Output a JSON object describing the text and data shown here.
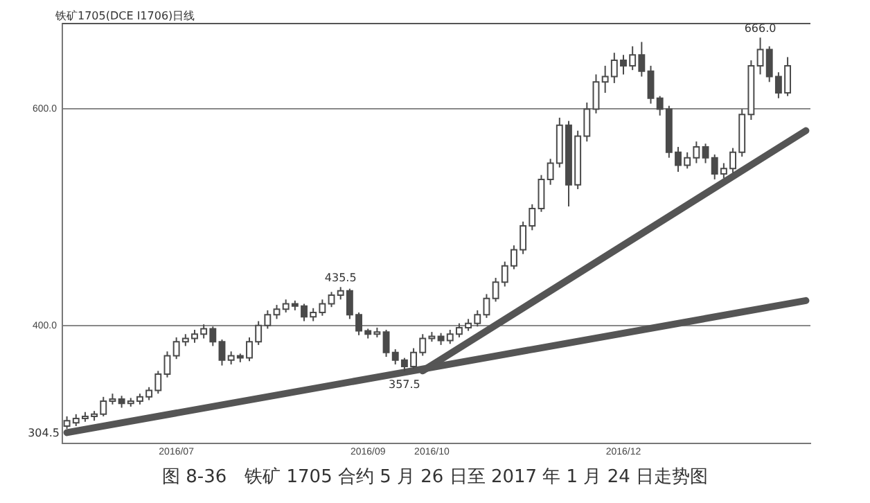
{
  "chart_data": {
    "type": "candlestick",
    "title": "铁矿1705(DCE I1706)日线",
    "annotations": [
      {
        "text": "435.5",
        "y": 435.5
      },
      {
        "text": "357.5",
        "y": 357.5
      },
      {
        "text": "666.0",
        "y": 666.0
      },
      "304.5",
      "图 8-36　铁矿 1705 合约 5 月 26 日至 2017 年 1 月 24 日走势图"
    ],
    "categories": [
      null,
      null,
      null,
      null,
      null,
      null,
      null,
      null,
      null,
      null,
      null,
      null,
      "2016/07",
      null,
      null,
      null,
      null,
      null,
      null,
      null,
      null,
      null,
      null,
      null,
      null,
      null,
      null,
      null,
      null,
      null,
      null,
      null,
      null,
      "2016/09",
      null,
      null,
      null,
      null,
      null,
      null,
      "2016/10",
      null,
      null,
      null,
      null,
      null,
      null,
      null,
      null,
      null,
      null,
      null,
      null,
      null,
      null,
      null,
      null,
      null,
      null,
      null,
      null,
      "2016/12",
      null,
      null,
      null,
      null,
      null,
      null,
      null,
      null,
      null,
      null,
      null,
      null,
      null,
      null,
      null,
      null,
      null,
      null,
      null,
      null
    ],
    "color": "#4a4a4a",
    "colors": [
      "#ffffff",
      "#ffffff",
      "#ffffff",
      "#ffffff",
      "#ffffff",
      "#ffffff",
      "#4a4a4a",
      "#ffffff",
      "#ffffff",
      "#ffffff",
      "#ffffff",
      "#ffffff",
      "#ffffff",
      "#ffffff",
      "#ffffff",
      "#ffffff",
      "#4a4a4a",
      "#4a4a4a",
      "#ffffff",
      "#4a4a4a",
      "#ffffff",
      "#ffffff",
      "#ffffff",
      "#ffffff",
      "#ffffff",
      "#4a4a4a",
      "#4a4a4a",
      "#ffffff",
      "#ffffff",
      "#ffffff",
      "#ffffff",
      "#4a4a4a",
      "#4a4a4a",
      "#4a4a4a",
      "#ffffff",
      "#4a4a4a",
      "#4a4a4a",
      "#4a4a4a",
      "#ffffff",
      "#ffffff",
      "#ffffff",
      "#4a4a4a",
      "#ffffff",
      "#ffffff",
      "#ffffff",
      "#ffffff",
      "#ffffff",
      "#ffffff",
      "#ffffff",
      "#ffffff",
      "#ffffff",
      "#ffffff",
      "#ffffff",
      "#ffffff",
      "#ffffff",
      "#4a4a4a",
      "#ffffff",
      "#ffffff",
      "#ffffff",
      "#ffffff",
      "#ffffff",
      "#4a4a4a",
      "#ffffff",
      "#4a4a4a",
      "#4a4a4a",
      "#4a4a4a",
      "#4a4a4a",
      "#4a4a4a",
      "#ffffff",
      "#ffffff",
      "#4a4a4a",
      "#4a4a4a",
      "#ffffff",
      "#ffffff",
      "#ffffff",
      "#ffffff",
      "#ffffff",
      "#4a4a4a",
      "#4a4a4a",
      "#ffffff",
      null,
      null
    ],
    "ohlc": [
      [
        307,
        316,
        304.5,
        312
      ],
      [
        310,
        318,
        307,
        314
      ],
      [
        314,
        320,
        311,
        316
      ],
      [
        316,
        321,
        312,
        318
      ],
      [
        318,
        334,
        316,
        330
      ],
      [
        330,
        337,
        327,
        332
      ],
      [
        332,
        335,
        324,
        328
      ],
      [
        328,
        333,
        325,
        330
      ],
      [
        330,
        337,
        327,
        334
      ],
      [
        334,
        343,
        331,
        340
      ],
      [
        340,
        358,
        337,
        355
      ],
      [
        355,
        376,
        352,
        372
      ],
      [
        372,
        389,
        369,
        385
      ],
      [
        385,
        392,
        381,
        388
      ],
      [
        388,
        396,
        384,
        392
      ],
      [
        392,
        401,
        388,
        397
      ],
      [
        397,
        399,
        381,
        385
      ],
      [
        385,
        387,
        363,
        368
      ],
      [
        368,
        376,
        364,
        372
      ],
      [
        372,
        374,
        366,
        370
      ],
      [
        370,
        389,
        367,
        385
      ],
      [
        385,
        404,
        382,
        400
      ],
      [
        400,
        414,
        397,
        410
      ],
      [
        410,
        419,
        406,
        415
      ],
      [
        415,
        424,
        412,
        420
      ],
      [
        420,
        423,
        414,
        418
      ],
      [
        418,
        420,
        404,
        408
      ],
      [
        408,
        416,
        404,
        412
      ],
      [
        412,
        424,
        409,
        420
      ],
      [
        420,
        431,
        417,
        428
      ],
      [
        428,
        435.5,
        424,
        432
      ],
      [
        432,
        434,
        406,
        410
      ],
      [
        410,
        412,
        391,
        395
      ],
      [
        395,
        397,
        388,
        392
      ],
      [
        392,
        398,
        389,
        394
      ],
      [
        394,
        396,
        371,
        375
      ],
      [
        375,
        378,
        364,
        368
      ],
      [
        368,
        370,
        357.5,
        362
      ],
      [
        362,
        379,
        360,
        375
      ],
      [
        375,
        392,
        372,
        388
      ],
      [
        388,
        394,
        385,
        390
      ],
      [
        390,
        393,
        382,
        386
      ],
      [
        386,
        396,
        383,
        392
      ],
      [
        392,
        402,
        389,
        398
      ],
      [
        398,
        406,
        395,
        402
      ],
      [
        402,
        414,
        399,
        410
      ],
      [
        410,
        429,
        407,
        425
      ],
      [
        425,
        444,
        422,
        440
      ],
      [
        440,
        459,
        436,
        455
      ],
      [
        455,
        474,
        452,
        470
      ],
      [
        470,
        496,
        466,
        492
      ],
      [
        492,
        512,
        488,
        508
      ],
      [
        508,
        539,
        505,
        535
      ],
      [
        535,
        554,
        530,
        550
      ],
      [
        550,
        592,
        546,
        585
      ],
      [
        585,
        589,
        510,
        530
      ],
      [
        530,
        580,
        526,
        575
      ],
      [
        575,
        606,
        570,
        600
      ],
      [
        600,
        632,
        596,
        625
      ],
      [
        625,
        640,
        615,
        630
      ],
      [
        630,
        652,
        624,
        645
      ],
      [
        645,
        650,
        632,
        640
      ],
      [
        640,
        658,
        636,
        650
      ],
      [
        650,
        662,
        630,
        635
      ],
      [
        635,
        640,
        605,
        610
      ],
      [
        610,
        612,
        594,
        600
      ],
      [
        600,
        603,
        555,
        560
      ],
      [
        560,
        565,
        542,
        548
      ],
      [
        548,
        560,
        545,
        555
      ],
      [
        555,
        570,
        550,
        565
      ],
      [
        565,
        568,
        550,
        555
      ],
      [
        555,
        558,
        535,
        540
      ],
      [
        540,
        550,
        536,
        545
      ],
      [
        545,
        564,
        541,
        560
      ],
      [
        560,
        600,
        556,
        595
      ],
      [
        595,
        645,
        590,
        640
      ],
      [
        640,
        666.0,
        632,
        655
      ],
      [
        655,
        658,
        625,
        630
      ],
      [
        630,
        634,
        610,
        615
      ],
      [
        615,
        648,
        612,
        640
      ],
      null,
      null
    ],
    "series": [
      {
        "type": "line",
        "color": "#555555",
        "values": [
          301,
          null,
          null,
          null,
          null,
          null,
          null,
          null,
          null,
          null,
          null,
          null,
          null,
          null,
          null,
          null,
          null,
          null,
          null,
          null,
          null,
          null,
          null,
          null,
          null,
          null,
          null,
          null,
          null,
          null,
          null,
          null,
          null,
          null,
          null,
          null,
          null,
          null,
          null,
          null,
          null,
          null,
          null,
          null,
          null,
          null,
          null,
          null,
          null,
          null,
          null,
          null,
          null,
          null,
          null,
          null,
          null,
          null,
          null,
          null,
          null,
          null,
          null,
          null,
          null,
          null,
          null,
          null,
          null,
          null,
          null,
          null,
          null,
          null,
          null,
          null,
          null,
          null,
          null,
          null,
          null,
          423
        ]
      },
      {
        "type": "line",
        "color": "#555555",
        "values": [
          null,
          null,
          null,
          null,
          null,
          null,
          null,
          null,
          null,
          null,
          null,
          null,
          null,
          null,
          null,
          null,
          null,
          null,
          null,
          null,
          null,
          null,
          null,
          null,
          null,
          null,
          null,
          null,
          null,
          null,
          null,
          null,
          null,
          null,
          null,
          null,
          null,
          null,
          null,
          358,
          null,
          null,
          null,
          null,
          null,
          null,
          null,
          null,
          null,
          null,
          null,
          null,
          null,
          null,
          null,
          null,
          null,
          null,
          null,
          null,
          null,
          null,
          null,
          null,
          null,
          null,
          null,
          null,
          null,
          null,
          null,
          null,
          null,
          null,
          null,
          null,
          null,
          null,
          null,
          null,
          null,
          580
        ]
      }
    ],
    "ylim": [
      291,
      679
    ],
    "yticks": [
      {
        "value": 400,
        "label": "400.0"
      },
      {
        "value": 600,
        "label": "600.0"
      }
    ],
    "grid": "y",
    "legend": false
  }
}
